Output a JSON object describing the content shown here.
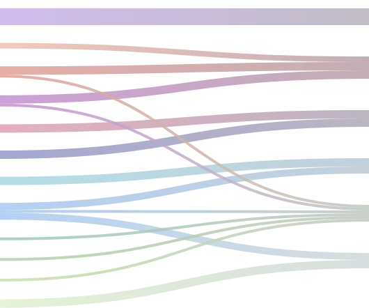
{
  "chart_data": {
    "type": "sankey",
    "left_colors": [
      "#c8b0ec",
      "#f0c0b0",
      "#e0a098",
      "#c490d0",
      "#e0a0b4",
      "#9498c8",
      "#a8d8e0",
      "#a8c8f0",
      "#a0c8b8",
      "#b0d0a8",
      "#c8e0a8",
      "#e0f0d0"
    ],
    "right_colors": [
      "#b8b0bc",
      "#b8a0a8",
      "#b0a8b8",
      "#b8c8d4",
      "#c0c8c0",
      "#d0d8d8"
    ],
    "links": [
      {
        "source": 0,
        "target": 0,
        "value": 24
      },
      {
        "source": 1,
        "target": 1,
        "value": 8
      },
      {
        "source": 2,
        "target": 1,
        "value": 12
      },
      {
        "source": 2,
        "target": 4,
        "value": 4
      },
      {
        "source": 3,
        "target": 1,
        "value": 12
      },
      {
        "source": 3,
        "target": 4,
        "value": 4
      },
      {
        "source": 4,
        "target": 2,
        "value": 12
      },
      {
        "source": 5,
        "target": 2,
        "value": 12
      },
      {
        "source": 6,
        "target": 3,
        "value": 12
      },
      {
        "source": 7,
        "target": 3,
        "value": 10
      },
      {
        "source": 7,
        "target": 4,
        "value": 4
      },
      {
        "source": 7,
        "target": 5,
        "value": 10
      },
      {
        "source": 8,
        "target": 4,
        "value": 4
      },
      {
        "source": 9,
        "target": 4,
        "value": 4
      },
      {
        "source": 10,
        "target": 4,
        "value": 4
      },
      {
        "source": 11,
        "target": 5,
        "value": 12
      }
    ]
  }
}
